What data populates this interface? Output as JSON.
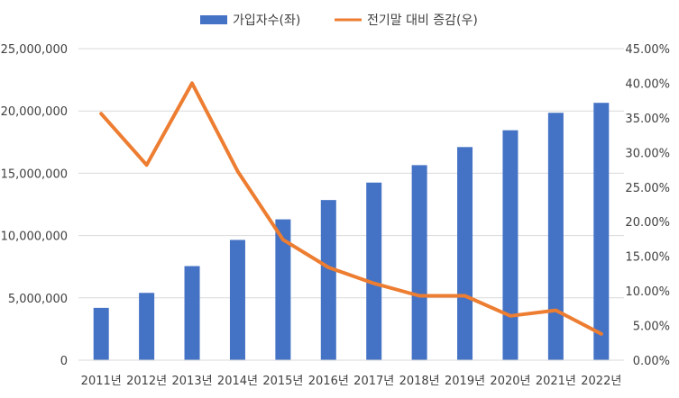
{
  "chart_data": {
    "type": "bar",
    "categories": [
      "2011년",
      "2012년",
      "2013년",
      "2014년",
      "2015년",
      "2016년",
      "2017년",
      "2018년",
      "2019년",
      "2020년",
      "2021년",
      "2022년"
    ],
    "series": [
      {
        "name": "가입자수(좌)",
        "type": "bar",
        "axis": "left",
        "color": "#4472C4",
        "values": [
          4200000,
          5400000,
          7550000,
          9650000,
          11300000,
          12850000,
          14250000,
          15650000,
          17100000,
          18450000,
          19850000,
          20650000
        ]
      },
      {
        "name": "전기말 대비 증감(우)",
        "type": "line",
        "axis": "right",
        "color": "#ED7D31",
        "values": [
          35.6,
          28.2,
          40.0,
          27.3,
          17.4,
          13.4,
          11.1,
          9.3,
          9.3,
          6.4,
          7.2,
          3.8
        ]
      }
    ],
    "y_left": {
      "ylim": [
        0,
        25000000
      ],
      "ticks": [
        0,
        5000000,
        10000000,
        15000000,
        20000000,
        25000000
      ],
      "tick_labels": [
        "0",
        "5,000,000",
        "10,000,000",
        "15,000,000",
        "20,000,000",
        "25,000,000"
      ]
    },
    "y_right": {
      "ylim": [
        0,
        45
      ],
      "ticks": [
        0,
        5,
        10,
        15,
        20,
        25,
        30,
        35,
        40,
        45
      ],
      "tick_labels": [
        "0.00%",
        "5.00%",
        "10.00%",
        "15.00%",
        "20.00%",
        "25.00%",
        "30.00%",
        "35.00%",
        "40.00%",
        "45.00%"
      ]
    },
    "grid": true,
    "legend_position": "top-center",
    "title": "",
    "xlabel": "",
    "ylabel": ""
  }
}
